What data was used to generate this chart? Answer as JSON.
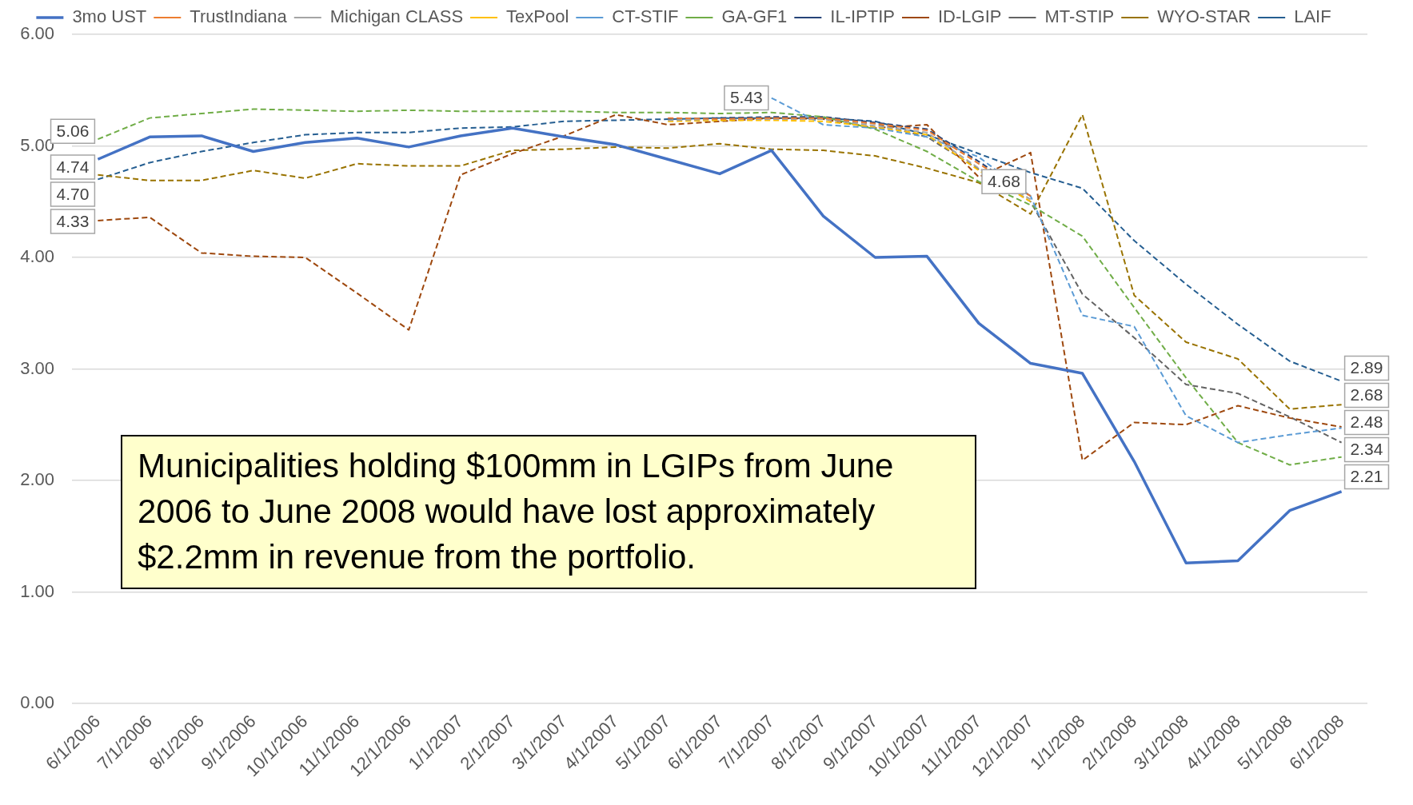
{
  "chart_data": {
    "type": "line",
    "categories": [
      "6/1/2006",
      "7/1/2006",
      "8/1/2006",
      "9/1/2006",
      "10/1/2006",
      "11/1/2006",
      "12/1/2006",
      "1/1/2007",
      "2/1/2007",
      "3/1/2007",
      "4/1/2007",
      "5/1/2007",
      "6/1/2007",
      "7/1/2007",
      "8/1/2007",
      "9/1/2007",
      "10/1/2007",
      "11/1/2007",
      "12/1/2007",
      "1/1/2008",
      "2/1/2008",
      "3/1/2008",
      "4/1/2008",
      "5/1/2008",
      "6/1/2008"
    ],
    "series": [
      {
        "name": "3mo UST",
        "color": "#4472c4",
        "line_style": "solid",
        "values": [
          4.88,
          5.08,
          5.09,
          4.95,
          5.03,
          5.07,
          4.99,
          5.09,
          5.16,
          5.08,
          5.01,
          4.88,
          4.75,
          4.96,
          4.37,
          4.0,
          4.01,
          3.41,
          3.05,
          2.96,
          2.17,
          1.26,
          1.28,
          1.73,
          1.9
        ]
      },
      {
        "name": "TrustIndiana",
        "color": "#ed7d31",
        "values": [
          null,
          null,
          null,
          null,
          null,
          null,
          null,
          null,
          null,
          null,
          null,
          5.25,
          5.24,
          5.25,
          5.25,
          5.2,
          5.14,
          4.84,
          4.55,
          null,
          null,
          null,
          null,
          null,
          null
        ]
      },
      {
        "name": "Michigan CLASS",
        "color": "#a5a5a5",
        "values": [
          null,
          null,
          null,
          null,
          null,
          null,
          null,
          null,
          null,
          null,
          null,
          5.23,
          5.24,
          5.24,
          5.24,
          5.18,
          5.12,
          4.8,
          4.52,
          null,
          null,
          null,
          null,
          null,
          null
        ]
      },
      {
        "name": "TexPool",
        "color": "#ffc000",
        "values": [
          null,
          null,
          null,
          null,
          null,
          null,
          null,
          null,
          null,
          null,
          null,
          5.22,
          5.23,
          5.23,
          5.22,
          5.17,
          5.1,
          4.78,
          4.5,
          null,
          null,
          null,
          null,
          null,
          null
        ]
      },
      {
        "name": "CT-STIF",
        "color": "#5b9bd5",
        "values": [
          null,
          null,
          null,
          null,
          null,
          null,
          null,
          null,
          null,
          null,
          null,
          null,
          null,
          5.43,
          5.19,
          5.16,
          5.08,
          4.9,
          4.55,
          3.48,
          3.38,
          2.58,
          2.34,
          2.41,
          2.47
        ],
        "value_labels": [
          null,
          null,
          null,
          null,
          null,
          null,
          null,
          null,
          null,
          null,
          null,
          null,
          null,
          "5.43",
          null,
          null,
          null,
          null,
          null,
          null,
          null,
          null,
          null,
          null,
          null
        ]
      },
      {
        "name": "GA-GF1",
        "color": "#70ad47",
        "values": [
          5.06,
          5.25,
          5.29,
          5.33,
          5.32,
          5.31,
          5.32,
          5.31,
          5.31,
          5.31,
          5.3,
          5.3,
          5.29,
          5.3,
          5.26,
          5.15,
          4.95,
          4.68,
          4.47,
          4.19,
          3.55,
          2.92,
          2.34,
          2.14,
          2.21
        ],
        "value_labels": [
          "5.06",
          null,
          null,
          null,
          null,
          null,
          null,
          null,
          null,
          null,
          null,
          null,
          null,
          null,
          null,
          null,
          null,
          "4.68",
          null,
          null,
          null,
          null,
          null,
          null,
          "2.21"
        ]
      },
      {
        "name": "IL-IPTIP",
        "color": "#264478",
        "values": [
          null,
          null,
          null,
          null,
          null,
          null,
          null,
          null,
          null,
          null,
          null,
          5.24,
          5.25,
          5.26,
          5.26,
          5.21,
          5.15,
          4.86,
          4.55,
          null,
          null,
          null,
          null,
          null,
          null
        ]
      },
      {
        "name": "ID-LGIP",
        "color": "#9e480e",
        "values": [
          4.33,
          4.36,
          4.04,
          4.01,
          4.0,
          3.68,
          3.35,
          4.74,
          4.93,
          5.09,
          5.28,
          5.19,
          5.22,
          5.25,
          5.24,
          5.16,
          5.19,
          4.72,
          4.94,
          2.18,
          2.52,
          2.5,
          2.67,
          2.56,
          2.48
        ],
        "value_labels": [
          "4.33",
          null,
          null,
          null,
          null,
          null,
          null,
          null,
          null,
          null,
          null,
          null,
          null,
          null,
          null,
          null,
          null,
          null,
          null,
          null,
          null,
          null,
          null,
          null,
          "2.48"
        ]
      },
      {
        "name": "MT-STIP",
        "color": "#636363",
        "values": [
          null,
          null,
          null,
          null,
          null,
          null,
          null,
          null,
          null,
          null,
          null,
          5.24,
          5.23,
          5.24,
          5.24,
          5.2,
          5.08,
          4.79,
          4.5,
          3.67,
          3.28,
          2.86,
          2.78,
          2.57,
          2.34
        ],
        "value_labels": [
          null,
          null,
          null,
          null,
          null,
          null,
          null,
          null,
          null,
          null,
          null,
          null,
          null,
          null,
          null,
          null,
          null,
          null,
          null,
          null,
          null,
          null,
          null,
          null,
          "2.34"
        ]
      },
      {
        "name": "WYO-STAR",
        "color": "#997300",
        "values": [
          4.74,
          4.69,
          4.69,
          4.78,
          4.71,
          4.84,
          4.82,
          4.82,
          4.96,
          4.97,
          4.99,
          4.98,
          5.02,
          4.97,
          4.96,
          4.91,
          4.8,
          4.67,
          4.39,
          5.28,
          3.66,
          3.24,
          3.09,
          2.64,
          2.68
        ],
        "value_labels": [
          "4.74",
          null,
          null,
          null,
          null,
          null,
          null,
          null,
          null,
          null,
          null,
          null,
          null,
          null,
          null,
          null,
          null,
          null,
          null,
          null,
          null,
          null,
          null,
          null,
          "2.68"
        ]
      },
      {
        "name": "LAIF",
        "color": "#255e91",
        "values": [
          4.7,
          4.85,
          4.95,
          5.03,
          5.1,
          5.12,
          5.12,
          5.16,
          5.17,
          5.22,
          5.23,
          5.24,
          5.25,
          5.25,
          5.25,
          5.22,
          5.1,
          4.93,
          4.76,
          4.62,
          4.15,
          3.76,
          3.4,
          3.07,
          2.89
        ],
        "value_labels": [
          "4.70",
          null,
          null,
          null,
          null,
          null,
          null,
          null,
          null,
          null,
          null,
          null,
          null,
          null,
          null,
          null,
          null,
          null,
          null,
          null,
          null,
          null,
          null,
          null,
          "2.89"
        ]
      }
    ],
    "ylim": [
      0,
      6
    ],
    "yticks": [
      {
        "value": 0,
        "label": "0.00"
      },
      {
        "value": 1,
        "label": "1.00"
      },
      {
        "value": 2,
        "label": "2.00"
      },
      {
        "value": 3,
        "label": "3.00"
      },
      {
        "value": 4,
        "label": "4.00"
      },
      {
        "value": 5,
        "label": "5.00"
      },
      {
        "value": 6,
        "label": "6.00"
      }
    ],
    "grid": "y",
    "legend": "top",
    "line_style": "dashed",
    "annotations": [
      "Municipalities holding $100mm in LGIPs from June 2006 to June 2008 would have lost approximately $2.2mm in revenue from the portfolio."
    ]
  }
}
